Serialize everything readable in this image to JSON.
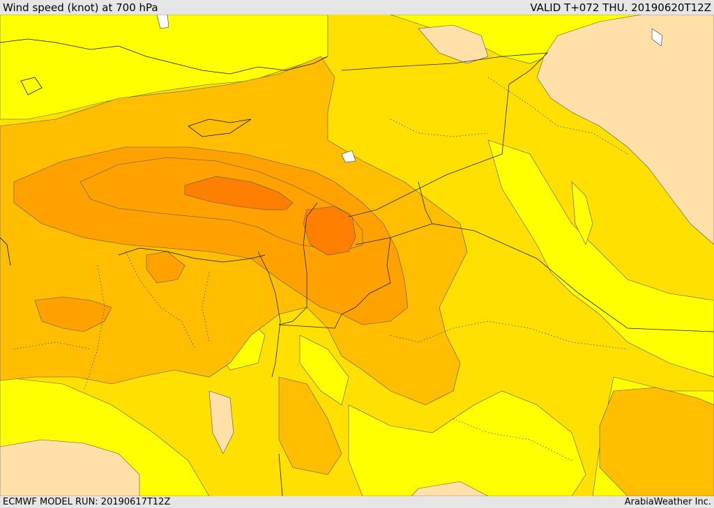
{
  "header": {
    "title": "Wind speed (knot) at 700 hPa",
    "valid": "VALID T+072 THU. 20190620T12Z"
  },
  "footer": {
    "model_run": "ECMWF MODEL RUN: 20190617T12Z",
    "credit": "ArabiaWeather Inc."
  },
  "map": {
    "field": "wind speed at 700 hPa",
    "colors": {
      "weakest": "#ffe0a8",
      "light": "#ffff00",
      "moderate": "#ffe000",
      "strong": "#ffbf00",
      "stronger": "#ffa200",
      "strongest": "#ff7f00",
      "water_bodies": "#ffffff"
    }
  }
}
